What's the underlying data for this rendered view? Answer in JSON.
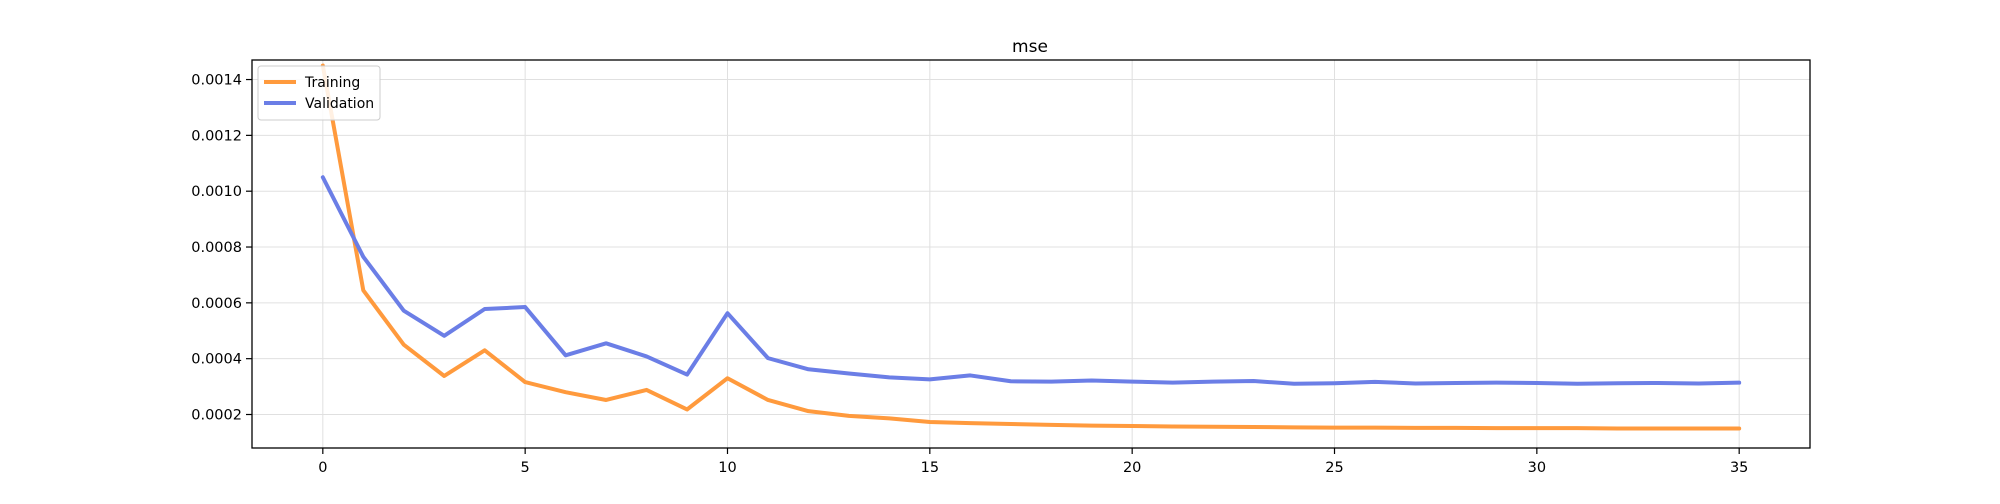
{
  "chart_data": {
    "type": "line",
    "title": "mse",
    "xlabel": "",
    "ylabel": "",
    "xlim": [
      -1.75,
      36.75
    ],
    "ylim": [
      8e-05,
      0.00147
    ],
    "xticks": [
      0,
      5,
      10,
      15,
      20,
      25,
      30,
      35
    ],
    "yticks": [
      0.0002,
      0.0004,
      0.0006,
      0.0008,
      0.001,
      0.0012,
      0.0014
    ],
    "ytick_labels": [
      "0.0002",
      "0.0004",
      "0.0006",
      "0.0008",
      "0.0010",
      "0.0012",
      "0.0014"
    ],
    "grid": true,
    "legend_position": "top-left",
    "x": [
      0,
      1,
      2,
      3,
      4,
      5,
      6,
      7,
      8,
      9,
      10,
      11,
      12,
      13,
      14,
      15,
      16,
      17,
      18,
      19,
      20,
      21,
      22,
      23,
      24,
      25,
      26,
      27,
      28,
      29,
      30,
      31,
      32,
      33,
      34,
      35
    ],
    "series": [
      {
        "name": "Training",
        "color": "#ff9a3d",
        "values": [
          0.00145,
          0.000645,
          0.00045,
          0.000338,
          0.00043,
          0.000316,
          0.00028,
          0.000252,
          0.000288,
          0.000218,
          0.00033,
          0.000252,
          0.000212,
          0.000195,
          0.000186,
          0.000173,
          0.000169,
          0.000166,
          0.000163,
          0.00016,
          0.000159,
          0.000157,
          0.000156,
          0.000155,
          0.000154,
          0.000153,
          0.000153,
          0.000152,
          0.000152,
          0.000151,
          0.000151,
          0.000151,
          0.00015,
          0.00015,
          0.00015,
          0.00015
        ]
      },
      {
        "name": "Validation",
        "color": "#6b7ee6",
        "values": [
          0.00105,
          0.000765,
          0.000572,
          0.000482,
          0.000578,
          0.000585,
          0.000412,
          0.000455,
          0.000408,
          0.000343,
          0.000563,
          0.000402,
          0.000362,
          0.000347,
          0.000333,
          0.000326,
          0.00034,
          0.000319,
          0.000318,
          0.000322,
          0.000318,
          0.000314,
          0.000318,
          0.00032,
          0.00031,
          0.000312,
          0.000317,
          0.000311,
          0.000313,
          0.000314,
          0.000313,
          0.00031,
          0.000312,
          0.000313,
          0.000311,
          0.000314
        ]
      }
    ]
  }
}
